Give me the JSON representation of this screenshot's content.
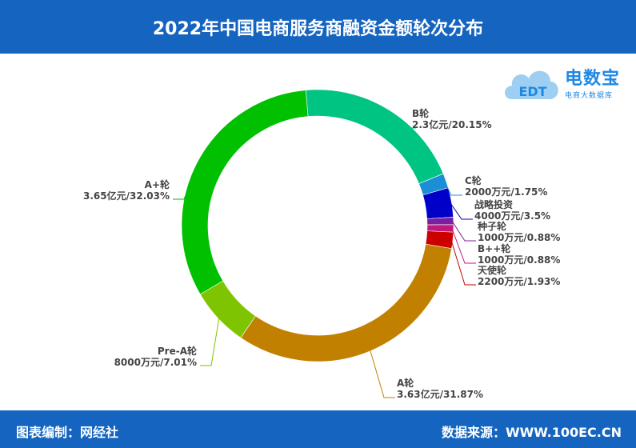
{
  "header": {
    "title": "2022年中国电商服务商融资金额轮次分布"
  },
  "logo": {
    "name": "电数宝",
    "subtitle": "电商大数据库",
    "mark": "EDT",
    "icon": "cloud-icon"
  },
  "footer": {
    "left": "图表编制：网经社",
    "right": "数据来源：WWW.100EC.CN"
  },
  "colors": {
    "header_bg": "#1565c0"
  },
  "chart_data": {
    "type": "pie",
    "style": "donut",
    "title": "2022年中国电商服务商融资金额轮次分布",
    "slices": [
      {
        "name": "B轮",
        "value_label": "2.3亿元/20.15%",
        "percent": 20.15,
        "color": "#00c482"
      },
      {
        "name": "C轮",
        "value_label": "2000万元/1.75%",
        "percent": 1.75,
        "color": "#1a8fd6"
      },
      {
        "name": "战略投资",
        "value_label": "4000万元/3.5%",
        "percent": 3.5,
        "color": "#0000c8"
      },
      {
        "name": "种子轮",
        "value_label": "1000万元/0.88%",
        "percent": 0.88,
        "color": "#7b1fa2"
      },
      {
        "name": "B++轮",
        "value_label": "1000万元/0.88%",
        "percent": 0.88,
        "color": "#c2187a"
      },
      {
        "name": "天使轮",
        "value_label": "2200万元/1.93%",
        "percent": 1.93,
        "color": "#cc0000"
      },
      {
        "name": "A轮",
        "value_label": "3.63亿元/31.87%",
        "percent": 31.87,
        "color": "#c28000"
      },
      {
        "name": "Pre-A轮",
        "value_label": "8000万元/7.01%",
        "percent": 7.01,
        "color": "#7fc400"
      },
      {
        "name": "A+轮",
        "value_label": "3.65亿元/32.03%",
        "percent": 32.03,
        "color": "#00c000"
      }
    ]
  }
}
